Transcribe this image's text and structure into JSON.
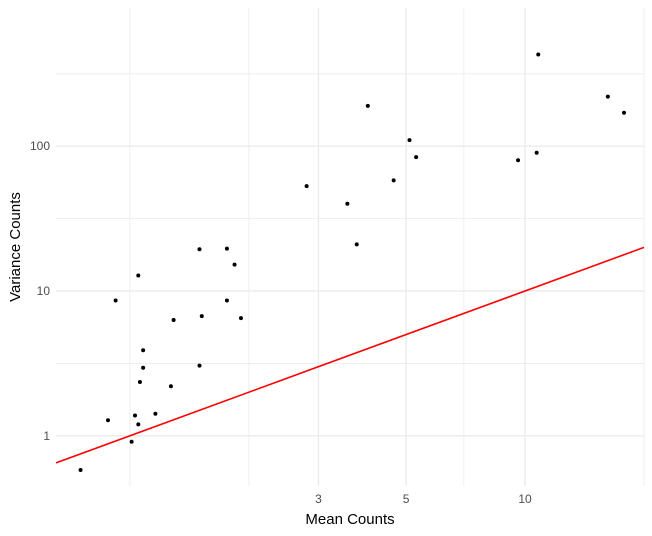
{
  "chart_data": {
    "type": "scatter",
    "title": "",
    "xlabel": "Mean Counts",
    "ylabel": "Variance Counts",
    "x_scale": "log10",
    "y_scale": "log10",
    "xlim": [
      0.65,
      20
    ],
    "ylim": [
      0.45,
      900
    ],
    "x_ticks": [
      {
        "value": 3,
        "label": "3"
      },
      {
        "value": 5,
        "label": "5"
      },
      {
        "value": 10,
        "label": "10"
      }
    ],
    "x_minor_gridlines": [
      1,
      2,
      7,
      20
    ],
    "y_ticks": [
      {
        "value": 1,
        "label": "1"
      },
      {
        "value": 10,
        "label": "10"
      },
      {
        "value": 100,
        "label": "100"
      }
    ],
    "y_minor_gridlines": [
      3.16,
      31.6,
      316
    ],
    "grid": true,
    "background": "#ffffff",
    "grid_color": "#ebebeb",
    "point_color": "#000000",
    "series": [
      {
        "name": "",
        "points": [
          {
            "x": 0.75,
            "y": 0.58
          },
          {
            "x": 0.88,
            "y": 1.28
          },
          {
            "x": 0.92,
            "y": 8.6
          },
          {
            "x": 1.01,
            "y": 0.91
          },
          {
            "x": 1.03,
            "y": 1.38
          },
          {
            "x": 1.05,
            "y": 1.2
          },
          {
            "x": 1.05,
            "y": 12.8
          },
          {
            "x": 1.06,
            "y": 2.35
          },
          {
            "x": 1.08,
            "y": 3.9
          },
          {
            "x": 1.08,
            "y": 2.95
          },
          {
            "x": 1.16,
            "y": 1.42
          },
          {
            "x": 1.27,
            "y": 2.2
          },
          {
            "x": 1.29,
            "y": 6.3
          },
          {
            "x": 1.5,
            "y": 19.4
          },
          {
            "x": 1.5,
            "y": 3.05
          },
          {
            "x": 1.52,
            "y": 6.7
          },
          {
            "x": 1.76,
            "y": 19.6
          },
          {
            "x": 1.76,
            "y": 8.6
          },
          {
            "x": 1.84,
            "y": 15.2
          },
          {
            "x": 1.91,
            "y": 6.5
          },
          {
            "x": 2.8,
            "y": 53
          },
          {
            "x": 3.55,
            "y": 40
          },
          {
            "x": 3.75,
            "y": 21
          },
          {
            "x": 4.0,
            "y": 190
          },
          {
            "x": 4.65,
            "y": 58
          },
          {
            "x": 5.1,
            "y": 110
          },
          {
            "x": 5.3,
            "y": 84
          },
          {
            "x": 9.6,
            "y": 80
          },
          {
            "x": 10.7,
            "y": 90
          },
          {
            "x": 10.8,
            "y": 430
          },
          {
            "x": 16.2,
            "y": 220
          },
          {
            "x": 17.8,
            "y": 170
          }
        ]
      }
    ],
    "reference_line": {
      "name": "",
      "color": "#ff0000",
      "slope": 1,
      "intercept": 0,
      "description": ""
    }
  }
}
